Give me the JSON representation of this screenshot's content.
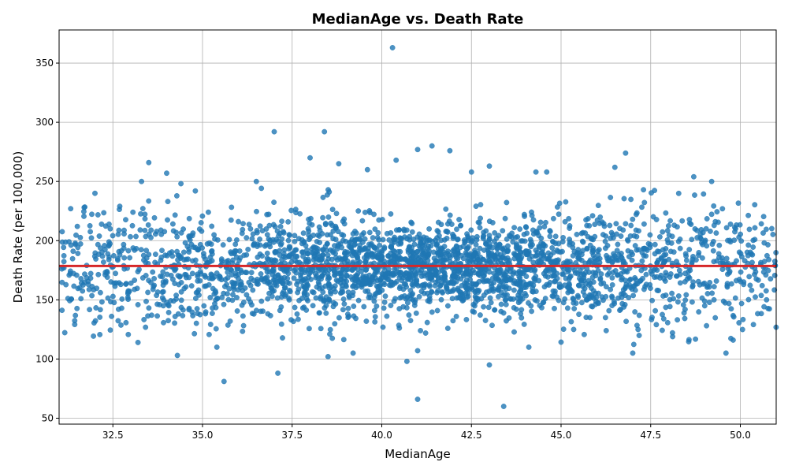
{
  "chart_data": {
    "type": "scatter",
    "title": "MedianAge vs. Death Rate",
    "xlabel": "MedianAge",
    "ylabel": "Death Rate (per 100,000)",
    "xlim": [
      31.0,
      51.0
    ],
    "ylim": [
      45,
      378
    ],
    "x_ticks": [
      32.5,
      35.0,
      37.5,
      40.0,
      42.5,
      45.0,
      47.5,
      50.0
    ],
    "x_tick_labels": [
      "32.5",
      "35.0",
      "37.5",
      "40.0",
      "42.5",
      "45.0",
      "47.5",
      "50.0"
    ],
    "y_ticks": [
      50,
      100,
      150,
      200,
      250,
      300,
      350
    ],
    "y_tick_labels": [
      "50",
      "100",
      "150",
      "200",
      "250",
      "300",
      "350"
    ],
    "grid": true,
    "point_color": "#1f77b4",
    "line_color": "#d62728",
    "regression_line": {
      "slope": 0.0,
      "intercept": 178.6
    },
    "notable_points": [
      {
        "x": 40.3,
        "y": 363
      },
      {
        "x": 37.0,
        "y": 292
      },
      {
        "x": 38.4,
        "y": 292
      },
      {
        "x": 38.0,
        "y": 270
      },
      {
        "x": 38.8,
        "y": 265
      },
      {
        "x": 33.5,
        "y": 266
      },
      {
        "x": 41.4,
        "y": 280
      },
      {
        "x": 41.0,
        "y": 277
      },
      {
        "x": 41.9,
        "y": 276
      },
      {
        "x": 46.8,
        "y": 274
      },
      {
        "x": 42.5,
        "y": 258
      },
      {
        "x": 44.6,
        "y": 258
      },
      {
        "x": 48.7,
        "y": 254
      },
      {
        "x": 49.2,
        "y": 250
      },
      {
        "x": 35.6,
        "y": 81
      },
      {
        "x": 37.1,
        "y": 88
      },
      {
        "x": 41.0,
        "y": 66
      },
      {
        "x": 43.4,
        "y": 60
      },
      {
        "x": 43.0,
        "y": 95
      },
      {
        "x": 40.7,
        "y": 98
      },
      {
        "x": 38.5,
        "y": 102
      },
      {
        "x": 34.3,
        "y": 103
      },
      {
        "x": 47.0,
        "y": 105
      },
      {
        "x": 49.6,
        "y": 105
      },
      {
        "x": 39.2,
        "y": 105
      },
      {
        "x": 41.0,
        "y": 107
      },
      {
        "x": 44.1,
        "y": 110
      },
      {
        "x": 35.4,
        "y": 110
      },
      {
        "x": 33.2,
        "y": 114
      },
      {
        "x": 49.8,
        "y": 116
      },
      {
        "x": 36.5,
        "y": 250
      },
      {
        "x": 39.6,
        "y": 260
      },
      {
        "x": 40.4,
        "y": 268
      },
      {
        "x": 33.3,
        "y": 250
      },
      {
        "x": 34.8,
        "y": 242
      },
      {
        "x": 43.0,
        "y": 263
      },
      {
        "x": 44.3,
        "y": 258
      },
      {
        "x": 46.5,
        "y": 262
      },
      {
        "x": 47.3,
        "y": 243
      },
      {
        "x": 31.7,
        "y": 228
      },
      {
        "x": 32.0,
        "y": 240
      },
      {
        "x": 34.0,
        "y": 257
      }
    ],
    "cloud": {
      "count": 2900,
      "seed": 12345,
      "y_center": 178,
      "y_spread_center": 18,
      "y_spread_edge": 28,
      "x_center": 41.2,
      "x_spread": 4.2
    }
  }
}
